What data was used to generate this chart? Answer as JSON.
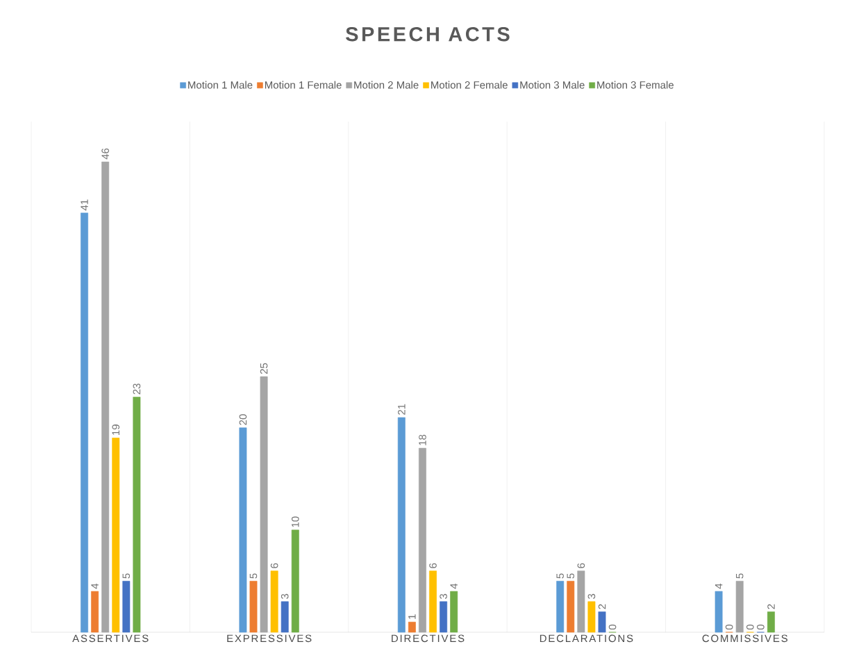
{
  "chart_data": {
    "type": "bar",
    "title": "SPEECH ACTS",
    "categories": [
      "ASSERTIVES",
      "EXPRESSIVES",
      "DIRECTIVES",
      "DECLARATIONS",
      "COMMISSIVES"
    ],
    "series": [
      {
        "name": "Motion 1 Male",
        "color": "#5b9bd5",
        "values": [
          41,
          20,
          21,
          5,
          4
        ]
      },
      {
        "name": "Motion 1 Female",
        "color": "#ed7d31",
        "values": [
          4,
          5,
          1,
          5,
          0
        ]
      },
      {
        "name": "Motion 2 Male",
        "color": "#a5a5a5",
        "values": [
          46,
          25,
          18,
          6,
          5
        ]
      },
      {
        "name": "Motion 2 Female",
        "color": "#ffc000",
        "values": [
          19,
          6,
          6,
          3,
          0
        ]
      },
      {
        "name": "Motion 3 Male",
        "color": "#4472c4",
        "values": [
          5,
          3,
          3,
          2,
          0
        ]
      },
      {
        "name": "Motion 3 Female",
        "color": "#70ad47",
        "values": [
          23,
          10,
          4,
          0,
          2
        ]
      }
    ],
    "data_labels": true,
    "legend": "top",
    "grid": "x"
  }
}
